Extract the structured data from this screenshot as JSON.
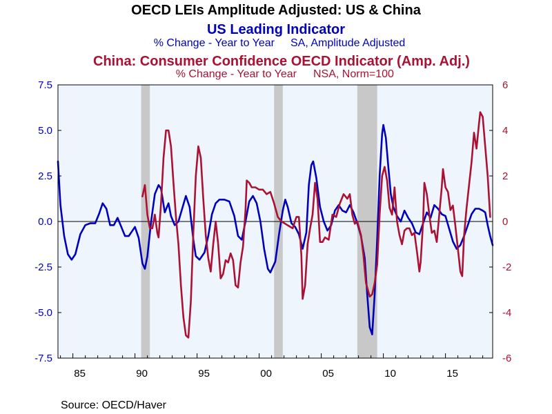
{
  "chart_data": {
    "type": "line",
    "title": "OECD LEIs Amplitude Adjusted: US & China",
    "series_titles": [
      {
        "name": "US Leading Indicator",
        "subtitle_left": "% Change - Year to Year",
        "subtitle_right": "SA, Amplitude Adjusted",
        "color": "#0000bb"
      },
      {
        "name": "China: Consumer Confidence OECD Indicator (Amp. Adj.)",
        "subtitle_left": "% Change - Year to Year",
        "subtitle_right": "NSA, Norm=100",
        "color": "#aa1133"
      }
    ],
    "source": "Source:  OECD/Haver",
    "x_range": [
      1983.8,
      2018.8
    ],
    "x_ticks": [
      {
        "value": 1985,
        "label": "85"
      },
      {
        "value": 1990,
        "label": "90"
      },
      {
        "value": 1995,
        "label": "95"
      },
      {
        "value": 2000,
        "label": "00"
      },
      {
        "value": 2005,
        "label": "05"
      },
      {
        "value": 2010,
        "label": "10"
      },
      {
        "value": 2015,
        "label": "15"
      }
    ],
    "y_left": {
      "range": [
        -7.5,
        7.5
      ],
      "ticks": [
        7.5,
        5.0,
        2.5,
        0.0,
        -2.5,
        -5.0,
        -7.5
      ],
      "labels": [
        "7.5",
        "5.0",
        "2.5",
        "0.0",
        "-2.5",
        "-5.0",
        "-7.5"
      ],
      "color": "#0000bb"
    },
    "y_right": {
      "range": [
        -6,
        6
      ],
      "ticks": [
        6,
        4,
        2,
        0,
        -2,
        -4,
        -6
      ],
      "labels": [
        "6",
        "4",
        "2",
        "0",
        "-2",
        "-4",
        "-6"
      ],
      "color": "#aa1133"
    },
    "recessions": [
      [
        1990.5,
        1991.2
      ],
      [
        2001.2,
        2001.9
      ],
      [
        2007.9,
        2009.5
      ]
    ],
    "colors": {
      "plot_background": "#eef5fd",
      "recession": "#c8c8c8",
      "zero_line": "#000000"
    },
    "series": [
      {
        "name": "US Leading Indicator",
        "axis": "left",
        "color": "#0000bb",
        "points": [
          [
            1983.8,
            3.3
          ],
          [
            1984.0,
            0.9
          ],
          [
            1984.3,
            -0.8
          ],
          [
            1984.6,
            -1.8
          ],
          [
            1984.9,
            -2.1
          ],
          [
            1985.2,
            -1.8
          ],
          [
            1985.6,
            -0.7
          ],
          [
            1986.0,
            -0.2
          ],
          [
            1986.4,
            -0.1
          ],
          [
            1986.8,
            -0.1
          ],
          [
            1987.1,
            0.4
          ],
          [
            1987.4,
            1.0
          ],
          [
            1987.7,
            0.7
          ],
          [
            1988.0,
            -0.2
          ],
          [
            1988.3,
            -0.2
          ],
          [
            1988.6,
            0.2
          ],
          [
            1988.9,
            -0.3
          ],
          [
            1989.2,
            -0.8
          ],
          [
            1989.5,
            -0.8
          ],
          [
            1989.8,
            -0.5
          ],
          [
            1990.0,
            -0.3
          ],
          [
            1990.3,
            -0.9
          ],
          [
            1990.6,
            -2.3
          ],
          [
            1990.8,
            -2.6
          ],
          [
            1991.0,
            -1.9
          ],
          [
            1991.3,
            0.0
          ],
          [
            1991.6,
            1.5
          ],
          [
            1991.9,
            2.0
          ],
          [
            1992.1,
            1.8
          ],
          [
            1992.4,
            0.5
          ],
          [
            1992.7,
            1.0
          ],
          [
            1992.9,
            0.3
          ],
          [
            1993.2,
            -0.2
          ],
          [
            1993.5,
            0.0
          ],
          [
            1993.8,
            0.7
          ],
          [
            1994.1,
            1.4
          ],
          [
            1994.4,
            0.8
          ],
          [
            1994.7,
            -1.0
          ],
          [
            1994.9,
            -1.9
          ],
          [
            1995.2,
            -2.1
          ],
          [
            1995.6,
            -1.7
          ],
          [
            1995.9,
            -0.8
          ],
          [
            1996.2,
            0.4
          ],
          [
            1996.5,
            1.0
          ],
          [
            1996.8,
            1.2
          ],
          [
            1997.2,
            1.2
          ],
          [
            1997.6,
            1.1
          ],
          [
            1998.0,
            0.3
          ],
          [
            1998.3,
            -0.8
          ],
          [
            1998.6,
            -1.0
          ],
          [
            1998.9,
            0.0
          ],
          [
            1999.2,
            1.1
          ],
          [
            1999.5,
            1.4
          ],
          [
            1999.8,
            1.0
          ],
          [
            2000.1,
            0.0
          ],
          [
            2000.4,
            -1.5
          ],
          [
            2000.7,
            -2.6
          ],
          [
            2000.9,
            -2.8
          ],
          [
            2001.3,
            -2.2
          ],
          [
            2001.6,
            -0.7
          ],
          [
            2001.9,
            0.6
          ],
          [
            2002.1,
            1.2
          ],
          [
            2002.3,
            0.8
          ],
          [
            2002.6,
            -0.1
          ],
          [
            2002.9,
            -0.3
          ],
          [
            2003.2,
            -0.7
          ],
          [
            2003.5,
            -1.5
          ],
          [
            2003.8,
            -0.6
          ],
          [
            2004.0,
            2.0
          ],
          [
            2004.2,
            3.1
          ],
          [
            2004.35,
            3.3
          ],
          [
            2004.6,
            2.4
          ],
          [
            2004.9,
            0.8
          ],
          [
            2005.2,
            0.0
          ],
          [
            2005.5,
            -0.5
          ],
          [
            2005.8,
            -0.2
          ],
          [
            2006.1,
            0.6
          ],
          [
            2006.4,
            0.9
          ],
          [
            2006.7,
            0.6
          ],
          [
            2007.0,
            0.5
          ],
          [
            2007.3,
            0.9
          ],
          [
            2007.6,
            0.5
          ],
          [
            2007.9,
            -0.1
          ],
          [
            2008.2,
            -0.8
          ],
          [
            2008.5,
            -2.0
          ],
          [
            2008.7,
            -4.0
          ],
          [
            2008.9,
            -5.8
          ],
          [
            2009.1,
            -6.2
          ],
          [
            2009.3,
            -4.0
          ],
          [
            2009.5,
            -1.0
          ],
          [
            2009.7,
            2.5
          ],
          [
            2009.9,
            4.8
          ],
          [
            2010.0,
            5.3
          ],
          [
            2010.2,
            4.6
          ],
          [
            2010.4,
            3.0
          ],
          [
            2010.6,
            1.5
          ],
          [
            2010.8,
            0.8
          ],
          [
            2011.1,
            0.3
          ],
          [
            2011.4,
            0.0
          ],
          [
            2011.7,
            0.6
          ],
          [
            2012.0,
            0.2
          ],
          [
            2012.3,
            -0.1
          ],
          [
            2012.6,
            -0.6
          ],
          [
            2012.9,
            -0.7
          ],
          [
            2013.2,
            -0.1
          ],
          [
            2013.5,
            0.5
          ],
          [
            2013.8,
            0.2
          ],
          [
            2014.1,
            0.9
          ],
          [
            2014.4,
            0.7
          ],
          [
            2014.7,
            0.4
          ],
          [
            2015.0,
            0.3
          ],
          [
            2015.3,
            -0.4
          ],
          [
            2015.6,
            -1.1
          ],
          [
            2015.9,
            -1.5
          ],
          [
            2016.2,
            -1.3
          ],
          [
            2016.5,
            -0.8
          ],
          [
            2016.8,
            -0.2
          ],
          [
            2017.1,
            0.4
          ],
          [
            2017.4,
            0.7
          ],
          [
            2017.7,
            0.7
          ],
          [
            2018.0,
            0.6
          ],
          [
            2018.2,
            0.5
          ],
          [
            2018.4,
            -0.2
          ],
          [
            2018.6,
            -0.8
          ],
          [
            2018.8,
            -1.3
          ]
        ]
      },
      {
        "name": "China: Consumer Confidence OECD Indicator (Amp. Adj.)",
        "axis": "right",
        "color": "#aa1133",
        "points": [
          [
            1990.6,
            1.1
          ],
          [
            1990.8,
            1.6
          ],
          [
            1991.0,
            0.3
          ],
          [
            1991.2,
            -0.3
          ],
          [
            1991.4,
            -0.3
          ],
          [
            1991.6,
            0.3
          ],
          [
            1991.8,
            -0.5
          ],
          [
            1991.9,
            -0.7
          ],
          [
            1992.1,
            0.8
          ],
          [
            1992.3,
            2.8
          ],
          [
            1992.5,
            4.0
          ],
          [
            1992.7,
            4.0
          ],
          [
            1992.9,
            3.3
          ],
          [
            1993.1,
            1.7
          ],
          [
            1993.3,
            0.2
          ],
          [
            1993.5,
            -1.0
          ],
          [
            1993.7,
            -2.8
          ],
          [
            1993.9,
            -4.2
          ],
          [
            1994.1,
            -5.0
          ],
          [
            1994.3,
            -5.1
          ],
          [
            1994.5,
            -3.5
          ],
          [
            1994.7,
            -0.5
          ],
          [
            1994.9,
            2.0
          ],
          [
            1995.1,
            3.3
          ],
          [
            1995.3,
            2.8
          ],
          [
            1995.5,
            1.0
          ],
          [
            1995.7,
            -0.6
          ],
          [
            1995.9,
            -1.6
          ],
          [
            1996.1,
            -2.2
          ],
          [
            1996.3,
            -1.0
          ],
          [
            1996.5,
            0.0
          ],
          [
            1996.7,
            -1.0
          ],
          [
            1996.9,
            -2.5
          ],
          [
            1997.1,
            -2.3
          ],
          [
            1997.3,
            -1.7
          ],
          [
            1997.5,
            -1.8
          ],
          [
            1997.7,
            -1.4
          ],
          [
            1997.9,
            -1.7
          ],
          [
            1998.1,
            -2.8
          ],
          [
            1998.3,
            -2.9
          ],
          [
            1998.5,
            -1.8
          ],
          [
            1998.7,
            -1.1
          ],
          [
            1998.9,
            0.5
          ],
          [
            1999.0,
            1.8
          ],
          [
            1999.2,
            1.7
          ],
          [
            1999.4,
            1.5
          ],
          [
            1999.7,
            1.5
          ],
          [
            2000.0,
            1.4
          ],
          [
            2000.3,
            1.4
          ],
          [
            2000.6,
            1.2
          ],
          [
            2000.9,
            1.3
          ],
          [
            2001.2,
            0.8
          ],
          [
            2001.5,
            0.2
          ],
          [
            2001.8,
            0.0
          ],
          [
            2002.1,
            -0.1
          ],
          [
            2002.4,
            -0.2
          ],
          [
            2002.7,
            -0.3
          ],
          [
            2003.0,
            0.2
          ],
          [
            2003.2,
            0.2
          ],
          [
            2003.4,
            -1.5
          ],
          [
            2003.5,
            -3.4
          ],
          [
            2003.7,
            -2.8
          ],
          [
            2003.9,
            -1.0
          ],
          [
            2004.1,
            -0.3
          ],
          [
            2004.3,
            0.3
          ],
          [
            2004.5,
            1.7
          ],
          [
            2004.7,
            1.0
          ],
          [
            2004.9,
            -0.9
          ],
          [
            2005.1,
            -0.9
          ],
          [
            2005.3,
            -0.7
          ],
          [
            2005.6,
            -0.8
          ],
          [
            2005.9,
            0.3
          ],
          [
            2006.2,
            0.2
          ],
          [
            2006.5,
            0.8
          ],
          [
            2006.8,
            1.2
          ],
          [
            2007.1,
            1.0
          ],
          [
            2007.3,
            1.2
          ],
          [
            2007.5,
            0.3
          ],
          [
            2007.7,
            -0.1
          ],
          [
            2007.9,
            0.0
          ],
          [
            2008.2,
            -0.6
          ],
          [
            2008.4,
            -1.5
          ],
          [
            2008.6,
            -2.7
          ],
          [
            2008.9,
            -3.3
          ],
          [
            2009.1,
            -3.2
          ],
          [
            2009.3,
            -2.7
          ],
          [
            2009.5,
            -1.9
          ],
          [
            2009.7,
            0.3
          ],
          [
            2009.9,
            2.0
          ],
          [
            2010.1,
            2.4
          ],
          [
            2010.3,
            1.8
          ],
          [
            2010.5,
            0.6
          ],
          [
            2010.7,
            0.3
          ],
          [
            2010.9,
            1.5
          ],
          [
            2011.1,
            0.0
          ],
          [
            2011.3,
            -0.6
          ],
          [
            2011.5,
            -1.0
          ],
          [
            2011.7,
            -0.4
          ],
          [
            2011.9,
            -0.3
          ],
          [
            2012.1,
            -0.3
          ],
          [
            2012.3,
            -0.6
          ],
          [
            2012.5,
            -0.5
          ],
          [
            2012.7,
            -1.3
          ],
          [
            2012.9,
            -2.2
          ],
          [
            2013.0,
            -1.8
          ],
          [
            2013.2,
            0.0
          ],
          [
            2013.3,
            1.7
          ],
          [
            2013.5,
            1.2
          ],
          [
            2013.7,
            0.3
          ],
          [
            2013.9,
            -0.5
          ],
          [
            2014.1,
            -0.4
          ],
          [
            2014.3,
            -0.9
          ],
          [
            2014.5,
            0.3
          ],
          [
            2014.7,
            1.5
          ],
          [
            2014.8,
            2.3
          ],
          [
            2015.0,
            1.5
          ],
          [
            2015.2,
            1.3
          ],
          [
            2015.4,
            0.5
          ],
          [
            2015.6,
            0.7
          ],
          [
            2015.8,
            -0.2
          ],
          [
            2016.0,
            -1.2
          ],
          [
            2016.2,
            -2.2
          ],
          [
            2016.35,
            -2.4
          ],
          [
            2016.5,
            -0.6
          ],
          [
            2016.7,
            0.6
          ],
          [
            2016.9,
            1.6
          ],
          [
            2017.1,
            2.6
          ],
          [
            2017.3,
            3.9
          ],
          [
            2017.5,
            3.2
          ],
          [
            2017.7,
            4.3
          ],
          [
            2017.8,
            4.8
          ],
          [
            2018.0,
            4.6
          ],
          [
            2018.2,
            3.3
          ],
          [
            2018.4,
            2.0
          ],
          [
            2018.6,
            0.2
          ]
        ]
      }
    ]
  }
}
